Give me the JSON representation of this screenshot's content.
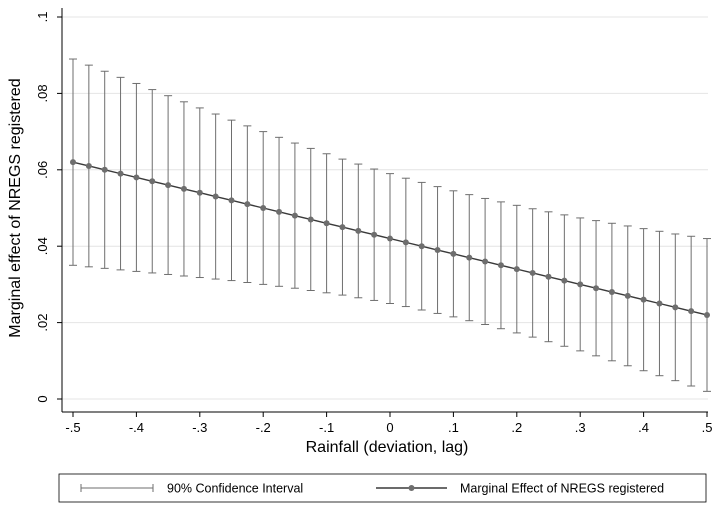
{
  "chart_data": {
    "type": "line",
    "title": "",
    "xlabel": "Rainfall (deviation, lag)",
    "ylabel": "Marginal effect of NREGS registered",
    "xlim": [
      -0.5,
      0.5
    ],
    "ylim": [
      0,
      0.1
    ],
    "x_ticks": [
      -0.5,
      -0.4,
      -0.3,
      -0.2,
      -0.1,
      0,
      0.1,
      0.2,
      0.3,
      0.4,
      0.5
    ],
    "x_tick_labels": [
      "-.5",
      "-.4",
      "-.3",
      "-.2",
      "-.1",
      "0",
      ".1",
      ".2",
      ".3",
      ".4",
      ".5"
    ],
    "y_ticks": [
      0,
      0.02,
      0.04,
      0.06,
      0.08,
      0.1
    ],
    "y_tick_labels": [
      "0",
      ".02",
      ".04",
      ".06",
      ".08",
      ".1"
    ],
    "grid": true,
    "legend_position": "bottom",
    "x": [
      -0.5,
      -0.475,
      -0.45,
      -0.425,
      -0.4,
      -0.375,
      -0.35,
      -0.325,
      -0.3,
      -0.275,
      -0.25,
      -0.225,
      -0.2,
      -0.175,
      -0.15,
      -0.125,
      -0.1,
      -0.075,
      -0.05,
      -0.025,
      0,
      0.025,
      0.05,
      0.075,
      0.1,
      0.125,
      0.15,
      0.175,
      0.2,
      0.225,
      0.25,
      0.275,
      0.3,
      0.325,
      0.35,
      0.375,
      0.4,
      0.425,
      0.45,
      0.475,
      0.5
    ],
    "series": [
      {
        "name": "Marginal Effect of NREGS registered",
        "type": "line-markers",
        "color": "#3a3a3a",
        "values": [
          0.062,
          0.061,
          0.06,
          0.059,
          0.058,
          0.057,
          0.056,
          0.055,
          0.054,
          0.053,
          0.052,
          0.051,
          0.05,
          0.049,
          0.048,
          0.047,
          0.046,
          0.045,
          0.044,
          0.043,
          0.042,
          0.041,
          0.04,
          0.039,
          0.038,
          0.037,
          0.036,
          0.035,
          0.034,
          0.033,
          0.032,
          0.031,
          0.03,
          0.029,
          0.028,
          0.027,
          0.026,
          0.025,
          0.024,
          0.023,
          0.022
        ]
      },
      {
        "name": "90% Confidence Interval",
        "type": "range-cap",
        "color": "#6e6e6e",
        "lower": [
          0.035,
          0.0346,
          0.0342,
          0.0338,
          0.0334,
          0.033,
          0.0326,
          0.0322,
          0.0318,
          0.0314,
          0.031,
          0.0305,
          0.03,
          0.0295,
          0.029,
          0.0284,
          0.0278,
          0.0272,
          0.0265,
          0.0258,
          0.025,
          0.0242,
          0.0233,
          0.0224,
          0.0215,
          0.0205,
          0.0195,
          0.0184,
          0.0173,
          0.0162,
          0.015,
          0.0138,
          0.0126,
          0.0113,
          0.01,
          0.0087,
          0.0074,
          0.0061,
          0.0048,
          0.0034,
          0.002
        ],
        "upper": [
          0.089,
          0.0874,
          0.0858,
          0.0842,
          0.0826,
          0.081,
          0.0794,
          0.0778,
          0.0762,
          0.0746,
          0.073,
          0.0715,
          0.07,
          0.0685,
          0.067,
          0.0656,
          0.0642,
          0.0628,
          0.0615,
          0.0602,
          0.059,
          0.0578,
          0.0567,
          0.0556,
          0.0545,
          0.0535,
          0.0525,
          0.0516,
          0.0507,
          0.0498,
          0.049,
          0.0482,
          0.0474,
          0.0467,
          0.046,
          0.0453,
          0.0446,
          0.0439,
          0.0432,
          0.0426,
          0.042
        ]
      }
    ],
    "legend": [
      {
        "label": "90% Confidence Interval",
        "symbol": "range-cap"
      },
      {
        "label": "Marginal Effect of NREGS registered",
        "symbol": "line-marker"
      }
    ]
  }
}
